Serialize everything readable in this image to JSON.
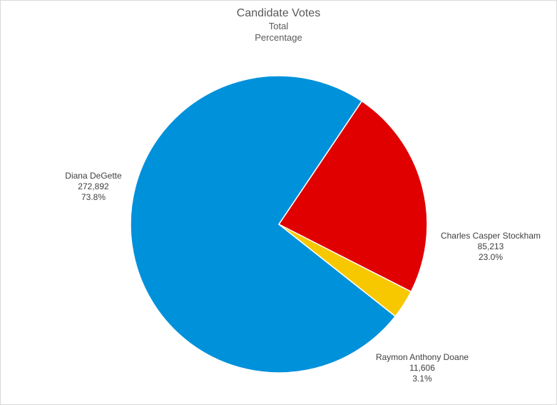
{
  "chart_data": {
    "type": "pie",
    "title": "Candidate Votes",
    "subtitle_lines": [
      "Total",
      "Percentage"
    ],
    "slices": [
      {
        "name": "Charles Casper Stockham",
        "value": 85213,
        "value_text": "85,213",
        "percent_text": "23.0%",
        "color": "#e00000"
      },
      {
        "name": "Raymon Anthony Doane",
        "value": 11606,
        "value_text": "11,606",
        "percent_text": "3.1%",
        "color": "#f7c800"
      },
      {
        "name": "Diana DeGette",
        "value": 272892,
        "value_text": "272,892",
        "percent_text": "73.8%",
        "color": "#0091db"
      }
    ]
  }
}
